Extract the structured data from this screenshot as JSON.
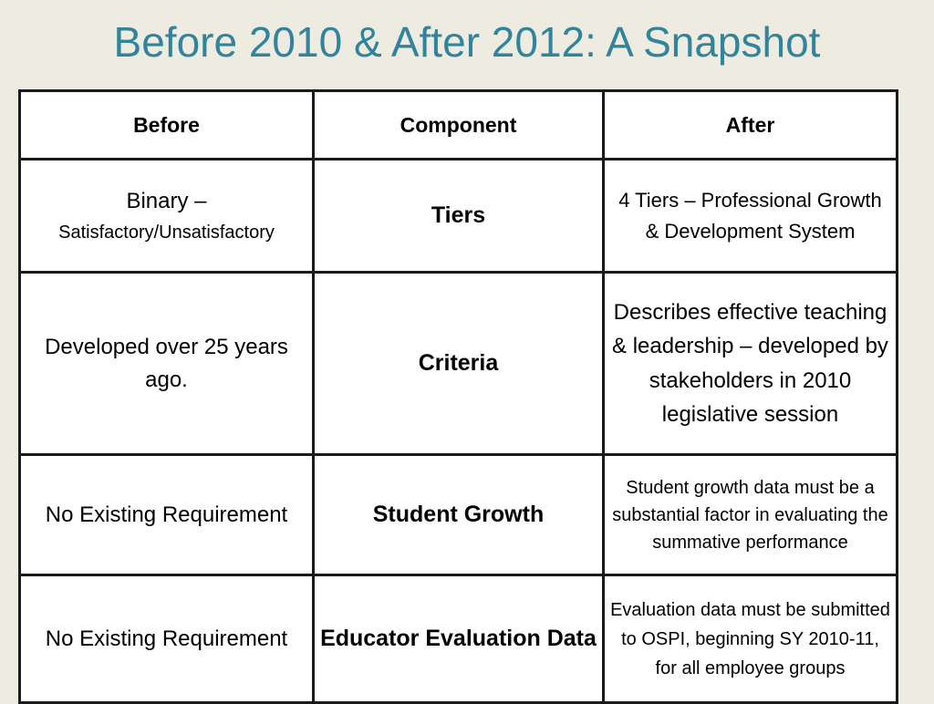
{
  "title": "Before 2010 & After 2012: A Snapshot",
  "headers": {
    "before": "Before",
    "component": "Component",
    "after": "After"
  },
  "rows": [
    {
      "before_line1": "Binary –",
      "before_line2": "Satisfactory/Unsatisfactory",
      "component": "Tiers",
      "after": "4 Tiers – Professional Growth & Development System"
    },
    {
      "before": "Developed over 25 years ago.",
      "component": "Criteria",
      "after": "Describes effective teaching & leadership – developed by stakeholders in 2010 legislative session"
    },
    {
      "before": "No Existing Requirement",
      "component": "Student Growth",
      "after": "Student growth data must be a substantial factor in evaluating the summative performance"
    },
    {
      "before": "No Existing Requirement",
      "component": "Educator Evaluation Data",
      "after": "Evaluation data must be submitted to OSPI, beginning SY 2010-11, for all employee groups"
    }
  ],
  "colors": {
    "background": "#eeece1",
    "accent": "#31849b",
    "border": "#1a1a1a"
  }
}
